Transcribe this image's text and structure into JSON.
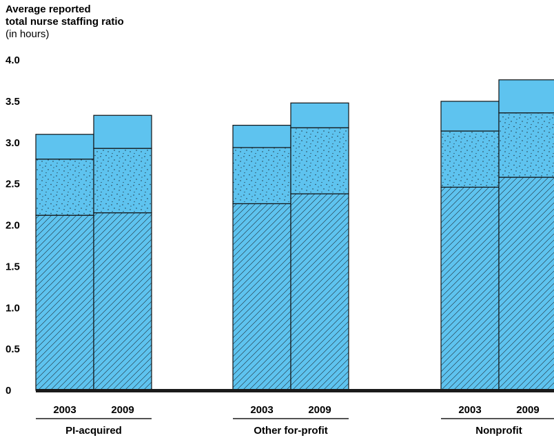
{
  "chart_data": {
    "type": "bar",
    "stacked": true,
    "title_lines": [
      "Average reported",
      "total nurse staffing ratio"
    ],
    "unit_label": "(in hours)",
    "ylim": [
      0,
      4.0
    ],
    "yticks": [
      "0",
      "0.5",
      "1.0",
      "1.5",
      "2.0",
      "2.5",
      "3.0",
      "3.5",
      "4.0"
    ],
    "grid": false,
    "groups": [
      {
        "label": "PI-acquired",
        "bars": [
          {
            "year": "2003",
            "segments": [
              2.12,
              0.68,
              0.3
            ]
          },
          {
            "year": "2009",
            "segments": [
              2.15,
              0.78,
              0.4
            ]
          }
        ]
      },
      {
        "label": "Other for-profit",
        "bars": [
          {
            "year": "2003",
            "segments": [
              2.26,
              0.68,
              0.27
            ]
          },
          {
            "year": "2009",
            "segments": [
              2.38,
              0.8,
              0.3
            ]
          }
        ]
      },
      {
        "label": "Nonprofit",
        "bars": [
          {
            "year": "2003",
            "segments": [
              2.46,
              0.68,
              0.36
            ]
          },
          {
            "year": "2009",
            "segments": [
              2.58,
              0.78,
              0.4
            ]
          }
        ]
      }
    ],
    "segment_patterns": [
      "hatched",
      "dotted",
      "solid"
    ],
    "colors": {
      "fill": "#5ec3ef",
      "outline": "#111111",
      "axis": "#1a1a1a"
    }
  }
}
